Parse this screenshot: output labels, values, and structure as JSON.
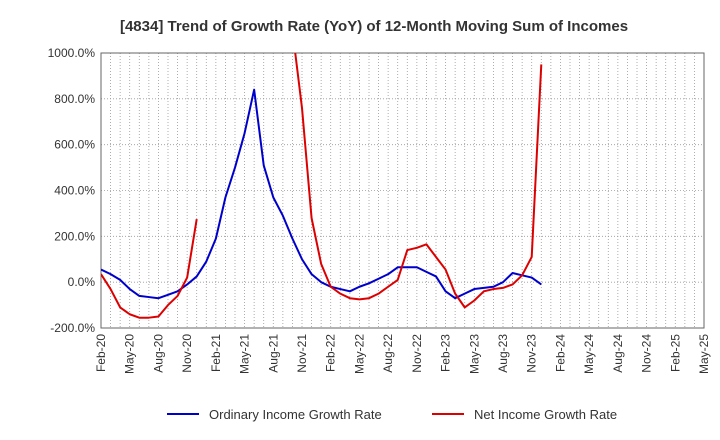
{
  "chart_data": {
    "type": "line",
    "title": "[4834]  Trend of Growth Rate (YoY) of 12-Month Moving Sum of Incomes",
    "xlabel": "",
    "ylabel": "",
    "ylim": [
      -200,
      1000
    ],
    "yticks": [
      -200,
      0,
      200,
      400,
      600,
      800,
      1000
    ],
    "ytick_labels": [
      "-200.0%",
      "0.0%",
      "200.0%",
      "400.0%",
      "600.0%",
      "800.0%",
      "1000.0%"
    ],
    "xtick_labels": [
      "Feb-20",
      "May-20",
      "Aug-20",
      "Nov-20",
      "Feb-21",
      "May-21",
      "Aug-21",
      "Nov-21",
      "Feb-22",
      "May-22",
      "Aug-22",
      "Nov-22",
      "Feb-23",
      "May-23",
      "Aug-23",
      "Nov-23",
      "Feb-24",
      "May-24",
      "Aug-24",
      "Nov-24",
      "Feb-25",
      "May-25"
    ],
    "grid": true,
    "legend_position": "bottom",
    "series": [
      {
        "name": "Ordinary Income Growth Rate",
        "color": "#0000cc",
        "values": [
          55,
          35,
          10,
          -30,
          -60,
          -65,
          -70,
          -55,
          -40,
          -10,
          25,
          90,
          190,
          370,
          500,
          650,
          840,
          510,
          370,
          290,
          190,
          100,
          35,
          0,
          -20,
          -30,
          -40,
          -20,
          -5,
          15,
          35,
          65,
          65,
          65,
          45,
          25,
          -40,
          -70,
          -50,
          -30,
          -25,
          -20,
          0,
          40,
          30,
          20,
          -10
        ]
      },
      {
        "name": "Net Income Growth Rate",
        "color": "#dd0000",
        "values": [
          35,
          -30,
          -110,
          -140,
          -155,
          -155,
          -150,
          -100,
          -60,
          20,
          275,
          null,
          null,
          null,
          null,
          null,
          null,
          null,
          null,
          null,
          1100,
          760,
          280,
          80,
          -20,
          -50,
          -70,
          -75,
          -70,
          -50,
          -20,
          10,
          140,
          150,
          165,
          110,
          55,
          -50,
          -110,
          -80,
          -40,
          -30,
          -25,
          -10,
          30,
          110,
          950
        ]
      }
    ]
  }
}
